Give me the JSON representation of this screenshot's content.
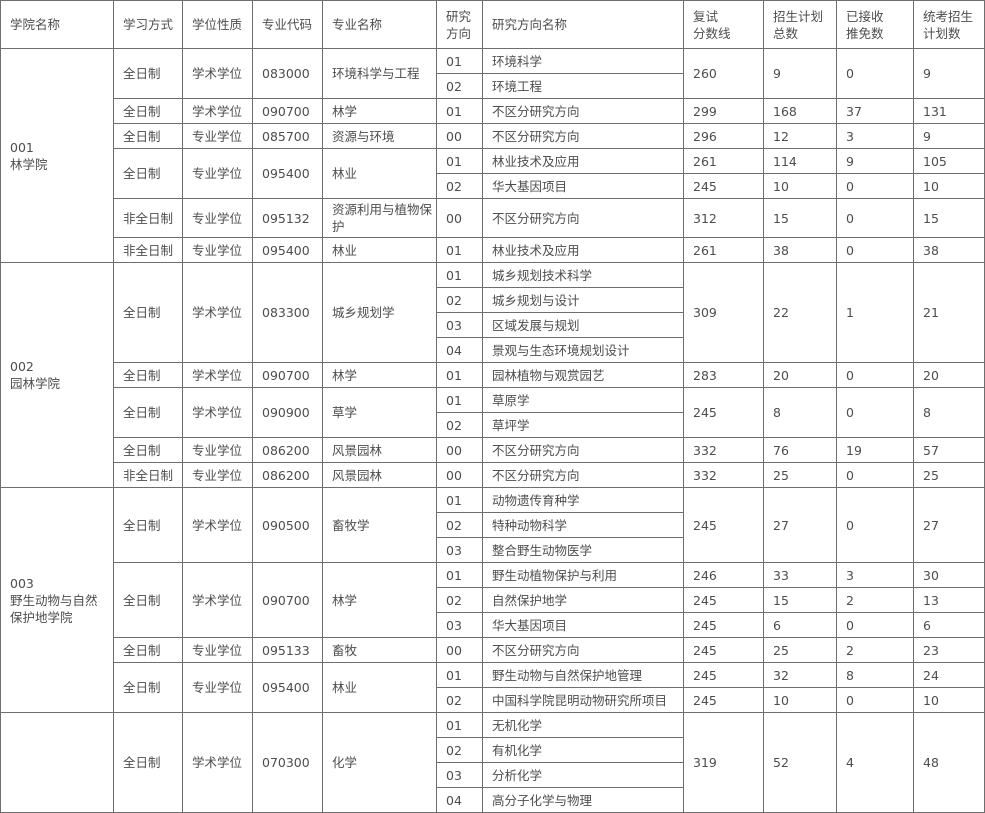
{
  "table": {
    "columns": [
      {
        "key": "college",
        "label": "学院名称"
      },
      {
        "key": "mode",
        "label": "学习方式"
      },
      {
        "key": "degree",
        "label": "学位性质"
      },
      {
        "key": "code",
        "label": "专业代码"
      },
      {
        "key": "major",
        "label": "专业名称"
      },
      {
        "key": "dir_no",
        "label": "研究\n方向"
      },
      {
        "key": "dir_name",
        "label": "研究方向名称"
      },
      {
        "key": "score",
        "label": "复试\n分数线"
      },
      {
        "key": "total",
        "label": "招生计划\n总数"
      },
      {
        "key": "exempt",
        "label": "已接收\n推免数"
      },
      {
        "key": "unified",
        "label": "统考招生\n计划数"
      }
    ],
    "colleges": [
      {
        "name": "001\n林学院",
        "programs": [
          {
            "mode": "全日制",
            "degree": "学术学位",
            "code": "083000",
            "major": "环境科学与工程",
            "directions": [
              {
                "no": "01",
                "name": "环境科学"
              },
              {
                "no": "02",
                "name": "环境工程"
              }
            ],
            "stats": {
              "score": "260",
              "total": "9",
              "exempt": "0",
              "unified": "9"
            }
          },
          {
            "mode": "全日制",
            "degree": "学术学位",
            "code": "090700",
            "major": "林学",
            "directions": [
              {
                "no": "01",
                "name": "不区分研究方向"
              }
            ],
            "stats": {
              "score": "299",
              "total": "168",
              "exempt": "37",
              "unified": "131"
            }
          },
          {
            "mode": "全日制",
            "degree": "专业学位",
            "code": "085700",
            "major": "资源与环境",
            "directions": [
              {
                "no": "00",
                "name": "不区分研究方向"
              }
            ],
            "stats": {
              "score": "296",
              "total": "12",
              "exempt": "3",
              "unified": "9"
            }
          },
          {
            "mode": "全日制",
            "degree": "专业学位",
            "code": "095400",
            "major": "林业",
            "directions": [
              {
                "no": "01",
                "name": "林业技术及应用",
                "stats": {
                  "score": "261",
                  "total": "114",
                  "exempt": "9",
                  "unified": "105"
                }
              },
              {
                "no": "02",
                "name": "华大基因项目",
                "stats": {
                  "score": "245",
                  "total": "10",
                  "exempt": "0",
                  "unified": "10"
                }
              }
            ]
          },
          {
            "mode": "非全日制",
            "degree": "专业学位",
            "code": "095132",
            "major": "资源利用与植物保护",
            "directions": [
              {
                "no": "00",
                "name": "不区分研究方向"
              }
            ],
            "stats": {
              "score": "312",
              "total": "15",
              "exempt": "0",
              "unified": "15"
            }
          },
          {
            "mode": "非全日制",
            "degree": "专业学位",
            "code": "095400",
            "major": "林业",
            "directions": [
              {
                "no": "01",
                "name": "林业技术及应用"
              }
            ],
            "stats": {
              "score": "261",
              "total": "38",
              "exempt": "0",
              "unified": "38"
            }
          }
        ]
      },
      {
        "name": "002\n园林学院",
        "programs": [
          {
            "mode": "全日制",
            "degree": "学术学位",
            "code": "083300",
            "major": "城乡规划学",
            "directions": [
              {
                "no": "01",
                "name": "城乡规划技术科学"
              },
              {
                "no": "02",
                "name": "城乡规划与设计"
              },
              {
                "no": "03",
                "name": "区域发展与规划"
              },
              {
                "no": "04",
                "name": "景观与生态环境规划设计"
              }
            ],
            "stats": {
              "score": "309",
              "total": "22",
              "exempt": "1",
              "unified": "21"
            }
          },
          {
            "mode": "全日制",
            "degree": "学术学位",
            "code": "090700",
            "major": "林学",
            "directions": [
              {
                "no": "01",
                "name": "园林植物与观赏园艺"
              }
            ],
            "stats": {
              "score": "283",
              "total": "20",
              "exempt": "0",
              "unified": "20"
            }
          },
          {
            "mode": "全日制",
            "degree": "学术学位",
            "code": "090900",
            "major": "草学",
            "directions": [
              {
                "no": "01",
                "name": "草原学"
              },
              {
                "no": "02",
                "name": "草坪学"
              }
            ],
            "stats": {
              "score": "245",
              "total": "8",
              "exempt": "0",
              "unified": "8"
            }
          },
          {
            "mode": "全日制",
            "degree": "专业学位",
            "code": "086200",
            "major": "风景园林",
            "directions": [
              {
                "no": "00",
                "name": "不区分研究方向"
              }
            ],
            "stats": {
              "score": "332",
              "total": "76",
              "exempt": "19",
              "unified": "57"
            }
          },
          {
            "mode": "非全日制",
            "degree": "专业学位",
            "code": "086200",
            "major": "风景园林",
            "directions": [
              {
                "no": "00",
                "name": "不区分研究方向"
              }
            ],
            "stats": {
              "score": "332",
              "total": "25",
              "exempt": "0",
              "unified": "25"
            }
          }
        ]
      },
      {
        "name": "003\n野生动物与自然保护地学院",
        "programs": [
          {
            "mode": "全日制",
            "degree": "学术学位",
            "code": "090500",
            "major": "畜牧学",
            "directions": [
              {
                "no": "01",
                "name": "动物遗传育种学"
              },
              {
                "no": "02",
                "name": "特种动物科学"
              },
              {
                "no": "03",
                "name": "整合野生动物医学"
              }
            ],
            "stats": {
              "score": "245",
              "total": "27",
              "exempt": "0",
              "unified": "27"
            }
          },
          {
            "mode": "全日制",
            "degree": "学术学位",
            "code": "090700",
            "major": "林学",
            "directions": [
              {
                "no": "01",
                "name": "野生动植物保护与利用",
                "stats": {
                  "score": "246",
                  "total": "33",
                  "exempt": "3",
                  "unified": "30"
                }
              },
              {
                "no": "02",
                "name": "自然保护地学",
                "stats": {
                  "score": "245",
                  "total": "15",
                  "exempt": "2",
                  "unified": "13"
                }
              },
              {
                "no": "03",
                "name": "华大基因项目",
                "stats": {
                  "score": "245",
                  "total": "6",
                  "exempt": "0",
                  "unified": "6"
                }
              }
            ]
          },
          {
            "mode": "全日制",
            "degree": "专业学位",
            "code": "095133",
            "major": "畜牧",
            "directions": [
              {
                "no": "00",
                "name": "不区分研究方向"
              }
            ],
            "stats": {
              "score": "245",
              "total": "25",
              "exempt": "2",
              "unified": "23"
            }
          },
          {
            "mode": "全日制",
            "degree": "专业学位",
            "code": "095400",
            "major": "林业",
            "directions": [
              {
                "no": "01",
                "name": "野生动物与自然保护地管理",
                "stats": {
                  "score": "245",
                  "total": "32",
                  "exempt": "8",
                  "unified": "24"
                }
              },
              {
                "no": "02",
                "name": "中国科学院昆明动物研究所项目",
                "stats": {
                  "score": "245",
                  "total": "10",
                  "exempt": "0",
                  "unified": "10"
                }
              }
            ]
          }
        ]
      },
      {
        "name": "",
        "programs": [
          {
            "mode": "全日制",
            "degree": "学术学位",
            "code": "070300",
            "major": "化学",
            "directions": [
              {
                "no": "01",
                "name": "无机化学"
              },
              {
                "no": "02",
                "name": "有机化学"
              },
              {
                "no": "03",
                "name": "分析化学"
              },
              {
                "no": "04",
                "name": "高分子化学与物理"
              }
            ],
            "stats": {
              "score": "319",
              "total": "52",
              "exempt": "4",
              "unified": "48"
            }
          }
        ]
      }
    ]
  }
}
